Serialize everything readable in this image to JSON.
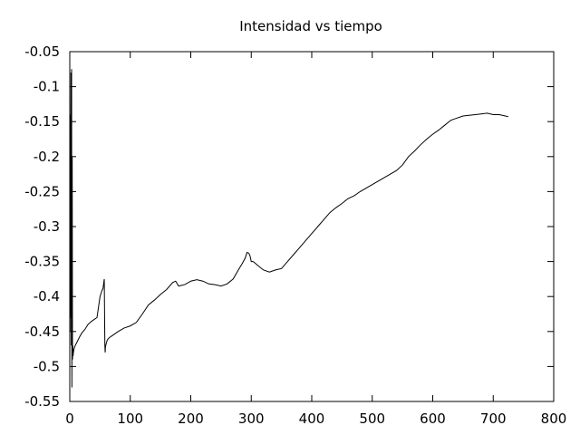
{
  "chart_data": {
    "type": "line",
    "title": "Intensidad vs tiempo",
    "xlabel": "",
    "ylabel": "",
    "xlim": [
      0,
      800
    ],
    "ylim": [
      -0.55,
      -0.05
    ],
    "x_ticks": [
      0,
      100,
      200,
      300,
      400,
      500,
      600,
      700,
      800
    ],
    "x_tick_labels": [
      "0",
      "100",
      "200",
      "300",
      "400",
      "500",
      "600",
      "700",
      "800"
    ],
    "y_ticks": [
      -0.05,
      -0.1,
      -0.15,
      -0.2,
      -0.25,
      -0.3,
      -0.35,
      -0.4,
      -0.45,
      -0.5,
      -0.55
    ],
    "y_tick_labels": [
      "-0.05",
      "-0.1",
      "-0.15",
      "-0.2",
      "-0.25",
      "-0.3",
      "-0.35",
      "-0.4",
      "-0.45",
      "-0.5",
      "-0.55"
    ],
    "grid": false,
    "legend": "none",
    "line_color": "#000000",
    "series": [
      {
        "x": [
          0,
          0.5,
          1,
          1.5,
          2,
          2.5,
          3,
          3.5,
          4,
          4.5,
          5,
          5.5,
          6,
          7,
          9,
          12,
          16,
          20,
          25,
          30,
          35,
          40,
          45,
          50,
          53,
          55,
          57,
          58,
          58.5,
          59,
          60,
          62,
          65,
          70,
          80,
          90,
          100,
          110,
          120,
          130,
          140,
          150,
          160,
          170,
          175,
          180,
          190,
          200,
          210,
          220,
          230,
          240,
          250,
          260,
          270,
          280,
          285,
          290,
          293,
          296,
          298,
          300,
          303,
          306,
          310,
          320,
          330,
          340,
          350,
          360,
          370,
          380,
          390,
          400,
          410,
          420,
          430,
          440,
          450,
          460,
          470,
          480,
          490,
          500,
          510,
          520,
          530,
          540,
          550,
          560,
          570,
          580,
          590,
          600,
          610,
          620,
          630,
          640,
          650,
          660,
          670,
          680,
          690,
          700,
          710,
          720,
          725
        ],
        "y": [
          -0.13,
          -0.45,
          -0.14,
          -0.43,
          -0.08,
          -0.47,
          -0.075,
          -0.53,
          -0.2,
          -0.49,
          -0.47,
          -0.485,
          -0.48,
          -0.475,
          -0.47,
          -0.465,
          -0.458,
          -0.452,
          -0.447,
          -0.44,
          -0.436,
          -0.433,
          -0.43,
          -0.4,
          -0.392,
          -0.388,
          -0.375,
          -0.47,
          -0.48,
          -0.472,
          -0.468,
          -0.462,
          -0.459,
          -0.456,
          -0.45,
          -0.445,
          -0.442,
          -0.437,
          -0.425,
          -0.412,
          -0.405,
          -0.397,
          -0.39,
          -0.38,
          -0.378,
          -0.385,
          -0.383,
          -0.378,
          -0.376,
          -0.378,
          -0.382,
          -0.383,
          -0.385,
          -0.382,
          -0.375,
          -0.36,
          -0.353,
          -0.345,
          -0.337,
          -0.338,
          -0.342,
          -0.35,
          -0.35,
          -0.352,
          -0.355,
          -0.362,
          -0.365,
          -0.362,
          -0.36,
          -0.35,
          -0.34,
          -0.33,
          -0.32,
          -0.31,
          -0.3,
          -0.29,
          -0.28,
          -0.273,
          -0.267,
          -0.26,
          -0.256,
          -0.25,
          -0.245,
          -0.24,
          -0.235,
          -0.23,
          -0.225,
          -0.22,
          -0.212,
          -0.2,
          -0.192,
          -0.183,
          -0.175,
          -0.168,
          -0.162,
          -0.155,
          -0.148,
          -0.145,
          -0.142,
          -0.141,
          -0.14,
          -0.139,
          -0.138,
          -0.14,
          -0.14,
          -0.142,
          -0.143
        ]
      }
    ]
  }
}
